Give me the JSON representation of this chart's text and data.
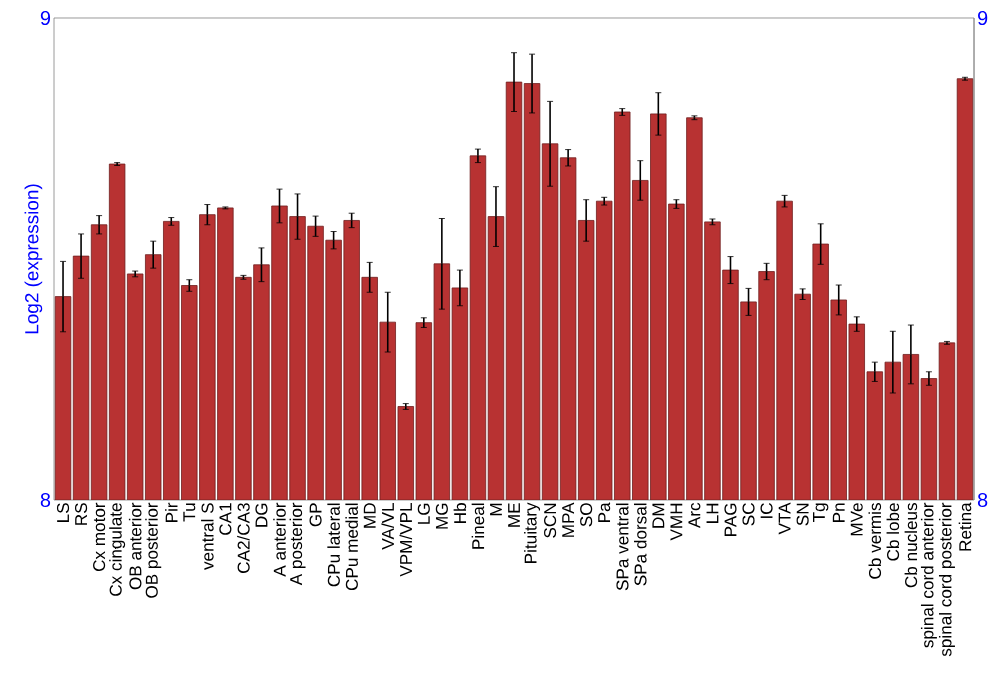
{
  "chart_data": {
    "type": "bar",
    "ylabel": "Log2 (expression)",
    "categories": [
      "LS",
      "RS",
      "Cx motor",
      "Cx cingulate",
      "OB anterior",
      "OB posterior",
      "Pir",
      "Tu",
      "ventral S",
      "CA1",
      "CA2/CA3",
      "DG",
      "A anterior",
      "A posterior",
      "GP",
      "CPu lateral",
      "CPu medial",
      "MD",
      "VA/VL",
      "VPM/VPL",
      "LG",
      "MG",
      "Hb",
      "Pineal",
      "M",
      "ME",
      "Pituitary",
      "SCN",
      "MPA",
      "SO",
      "Pa",
      "SPa ventral",
      "SPa dorsal",
      "DM",
      "VMH",
      "Arc",
      "LH",
      "PAG",
      "SC",
      "IC",
      "VTA",
      "SN",
      "Tg",
      "Pn",
      "MVe",
      "Cb vermis",
      "Cb lobe",
      "Cb nucleus",
      "spinal cord anterior",
      "spinal cord posterior",
      "Retina"
    ],
    "values": [
      8.422,
      8.506,
      8.571,
      8.697,
      8.469,
      8.509,
      8.578,
      8.445,
      8.592,
      8.606,
      8.462,
      8.488,
      8.61,
      8.588,
      8.568,
      8.539,
      8.58,
      8.462,
      8.369,
      8.194,
      8.368,
      8.49,
      8.44,
      8.714,
      8.588,
      8.867,
      8.864,
      8.739,
      8.71,
      8.58,
      8.62,
      8.805,
      8.663,
      8.801,
      8.614,
      8.793,
      8.577,
      8.477,
      8.411,
      8.474,
      8.62,
      8.427,
      8.531,
      8.415,
      8.365,
      8.266,
      8.286,
      8.302,
      8.252,
      8.326,
      8.874
    ],
    "errors": [
      0.073,
      0.046,
      0.019,
      0.003,
      0.006,
      0.028,
      0.008,
      0.012,
      0.021,
      0.002,
      0.004,
      0.035,
      0.035,
      0.047,
      0.021,
      0.018,
      0.015,
      0.031,
      0.062,
      0.006,
      0.01,
      0.094,
      0.037,
      0.014,
      0.062,
      0.061,
      0.061,
      0.088,
      0.017,
      0.043,
      0.008,
      0.007,
      0.041,
      0.044,
      0.009,
      0.004,
      0.006,
      0.028,
      0.028,
      0.017,
      0.012,
      0.011,
      0.042,
      0.031,
      0.015,
      0.02,
      0.064,
      0.061,
      0.014,
      0.003,
      0.003
    ],
    "color": "#b83232",
    "ylim": [
      8,
      9
    ],
    "yticks": [
      8,
      9
    ],
    "y2lim": [
      8,
      9
    ],
    "y2ticks": [
      8,
      9
    ]
  }
}
